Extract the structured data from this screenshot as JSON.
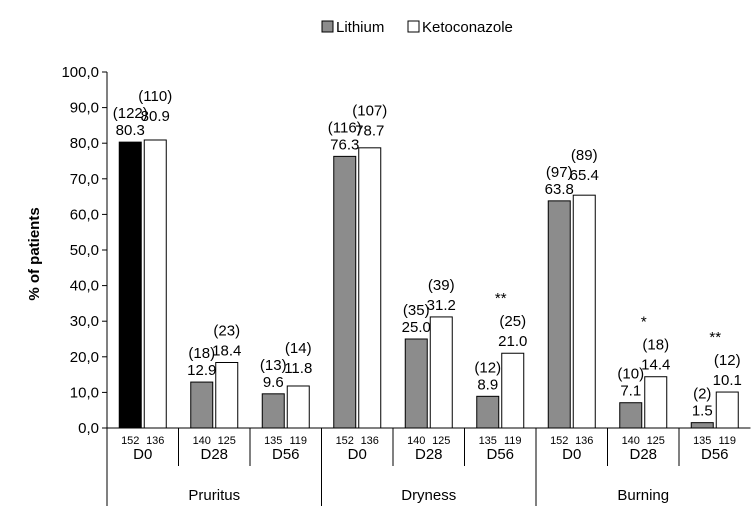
{
  "chart_data": {
    "type": "bar",
    "ylabel": "% of patients",
    "ylim": [
      0,
      100
    ],
    "yticks": [
      "0,0",
      "10,0",
      "20,0",
      "30,0",
      "40,0",
      "50,0",
      "60,0",
      "70,0",
      "80,0",
      "90,0",
      "100,0"
    ],
    "legend": {
      "placement": "top",
      "entries": [
        "Lithium",
        "Ketoconazole"
      ]
    },
    "colors": {
      "lithium_fill": "#8c8c8c",
      "lithium_highlight": "#000000",
      "ketoconazole_fill": "#ffffff"
    },
    "groups": [
      {
        "name": "Pruritus",
        "days": [
          {
            "day": "D0",
            "lithium": {
              "value": 80.3,
              "label": "80.3",
              "count": "(122)",
              "n": "152",
              "solid": true
            },
            "ketoconazole": {
              "value": 80.9,
              "label": "80.9",
              "count": "(110)",
              "n": "136"
            },
            "sig": ""
          },
          {
            "day": "D28",
            "lithium": {
              "value": 12.9,
              "label": "12.9",
              "count": "(18)",
              "n": "140"
            },
            "ketoconazole": {
              "value": 18.4,
              "label": "18.4",
              "count": "(23)",
              "n": "125"
            },
            "sig": ""
          },
          {
            "day": "D56",
            "lithium": {
              "value": 9.6,
              "label": "9.6",
              "count": "(13)",
              "n": "135"
            },
            "ketoconazole": {
              "value": 11.8,
              "label": "11.8",
              "count": "(14)",
              "n": "119"
            },
            "sig": ""
          }
        ]
      },
      {
        "name": "Dryness",
        "days": [
          {
            "day": "D0",
            "lithium": {
              "value": 76.3,
              "label": "76.3",
              "count": "(116)",
              "n": "152"
            },
            "ketoconazole": {
              "value": 78.7,
              "label": "78.7",
              "count": "(107)",
              "n": "136"
            },
            "sig": ""
          },
          {
            "day": "D28",
            "lithium": {
              "value": 25.0,
              "label": "25.0",
              "count": "(35)",
              "n": "140"
            },
            "ketoconazole": {
              "value": 31.2,
              "label": "31.2",
              "count": "(39)",
              "n": "125"
            },
            "sig": ""
          },
          {
            "day": "D56",
            "lithium": {
              "value": 8.9,
              "label": "8.9",
              "count": "(12)",
              "n": "135"
            },
            "ketoconazole": {
              "value": 21.0,
              "label": "21.0",
              "count": "(25)",
              "n": "119"
            },
            "sig": "**"
          }
        ]
      },
      {
        "name": "Burning",
        "days": [
          {
            "day": "D0",
            "lithium": {
              "value": 63.8,
              "label": "63.8",
              "count": "(97)",
              "n": "152"
            },
            "ketoconazole": {
              "value": 65.4,
              "label": "65.4",
              "count": "(89)",
              "n": "136"
            },
            "sig": ""
          },
          {
            "day": "D28",
            "lithium": {
              "value": 7.1,
              "label": "7.1",
              "count": "(10)",
              "n": "140"
            },
            "ketoconazole": {
              "value": 14.4,
              "label": "14.4",
              "count": "(18)",
              "n": "125"
            },
            "sig": "*"
          },
          {
            "day": "D56",
            "lithium": {
              "value": 1.5,
              "label": "1.5",
              "count": "(2)",
              "n": "135"
            },
            "ketoconazole": {
              "value": 10.1,
              "label": "10.1",
              "count": "(12)",
              "n": "119"
            },
            "sig": "**"
          }
        ]
      }
    ]
  }
}
